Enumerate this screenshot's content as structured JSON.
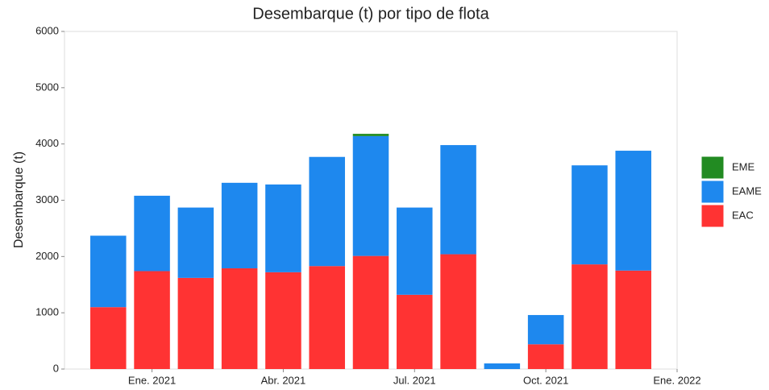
{
  "chart_data": {
    "type": "stacked-bar",
    "title": "Desembarque (t) por tipo de flota",
    "y_label": "Desembarque (t)",
    "categories": [
      null,
      "Ene. 2021",
      null,
      null,
      "Abr. 2021",
      null,
      null,
      "Jul. 2021",
      null,
      null,
      "Oct. 2021",
      null,
      null,
      "Ene. 2022"
    ],
    "series": [
      {
        "name": "EAC",
        "color": "#ff3333",
        "values": [
          1100,
          1740,
          1620,
          1790,
          1720,
          1830,
          2010,
          1320,
          2040,
          0,
          440,
          1860,
          1750,
          null
        ]
      },
      {
        "name": "EAME",
        "color": "#1e88ee",
        "values": [
          1270,
          1340,
          1250,
          1520,
          1560,
          1940,
          2130,
          1550,
          1940,
          100,
          520,
          1760,
          2130,
          null
        ]
      },
      {
        "name": "EME",
        "color": "#228b22",
        "values": [
          0,
          0,
          0,
          0,
          0,
          0,
          40,
          0,
          0,
          0,
          0,
          0,
          0,
          null
        ]
      }
    ],
    "ylim": [
      0,
      6000
    ],
    "yticks": [
      0,
      1000,
      2000,
      3000,
      4000,
      5000,
      6000
    ],
    "grid": false,
    "legend": "right"
  }
}
